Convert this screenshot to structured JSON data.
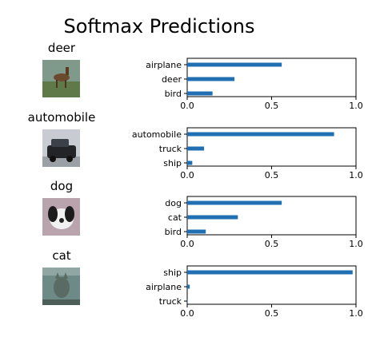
{
  "figure": {
    "title": "Softmax Predictions"
  },
  "colors": {
    "bar": "#1f6fb2",
    "axis": "#000000"
  },
  "chart_data": [
    {
      "type": "bar",
      "orientation": "horizontal",
      "image_label": "deer",
      "categories": [
        "airplane",
        "deer",
        "bird"
      ],
      "values": [
        0.56,
        0.28,
        0.15
      ],
      "xlim": [
        0,
        1
      ],
      "xticks": [
        "0.0",
        "0.5",
        "1.0"
      ]
    },
    {
      "type": "bar",
      "orientation": "horizontal",
      "image_label": "automobile",
      "categories": [
        "automobile",
        "truck",
        "ship"
      ],
      "values": [
        0.87,
        0.1,
        0.03
      ],
      "xlim": [
        0,
        1
      ],
      "xticks": [
        "0.0",
        "0.5",
        "1.0"
      ]
    },
    {
      "type": "bar",
      "orientation": "horizontal",
      "image_label": "dog",
      "categories": [
        "dog",
        "cat",
        "bird"
      ],
      "values": [
        0.56,
        0.3,
        0.11
      ],
      "xlim": [
        0,
        1
      ],
      "xticks": [
        "0.0",
        "0.5",
        "1.0"
      ]
    },
    {
      "type": "bar",
      "orientation": "horizontal",
      "image_label": "cat",
      "categories": [
        "ship",
        "airplane",
        "truck"
      ],
      "values": [
        0.98,
        0.015,
        0.003
      ],
      "xlim": [
        0,
        1
      ],
      "xticks": [
        "0.0",
        "0.5",
        "1.0"
      ]
    }
  ]
}
